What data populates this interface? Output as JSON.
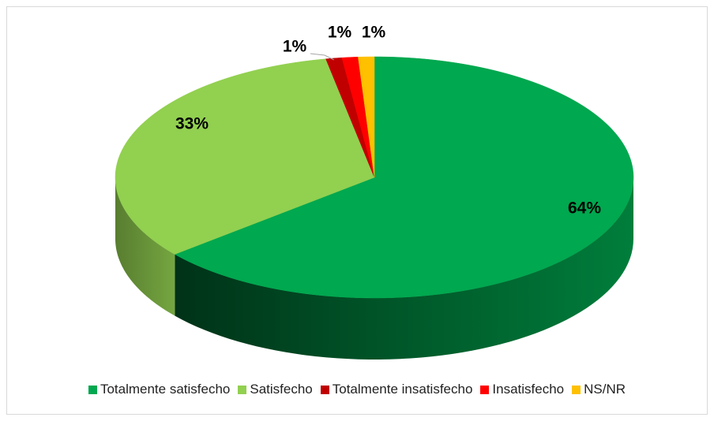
{
  "chart_data": {
    "type": "pie",
    "categories": [
      "Totalmente satisfecho",
      "Satisfecho",
      "Totalmente insatisfecho",
      "Insatisfecho",
      "NS/NR"
    ],
    "values": [
      64,
      33,
      1,
      1,
      1
    ],
    "value_labels": [
      "64%",
      "33%",
      "1%",
      "1%",
      "1%"
    ],
    "colors": [
      "#00a84f",
      "#92d050",
      "#c00000",
      "#ff0000",
      "#ffc000"
    ],
    "legend": "bottom"
  }
}
